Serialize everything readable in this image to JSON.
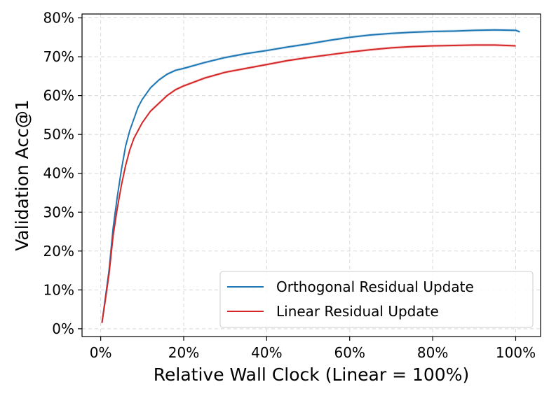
{
  "chart_data": {
    "type": "line",
    "title": "",
    "xlabel": "Relative Wall Clock (Linear = 100%)",
    "ylabel": "Validation Acc@1",
    "xlim": [
      -4.5,
      106
    ],
    "ylim": [
      -2,
      81
    ],
    "xticks": [
      0,
      20,
      40,
      60,
      80,
      100
    ],
    "xtick_labels": [
      "0%",
      "20%",
      "40%",
      "60%",
      "80%",
      "100%"
    ],
    "yticks": [
      0,
      10,
      20,
      30,
      40,
      50,
      60,
      70,
      80
    ],
    "ytick_labels": [
      "0%",
      "10%",
      "20%",
      "30%",
      "40%",
      "50%",
      "60%",
      "70%",
      "80%"
    ],
    "grid": true,
    "legend_position": "lower-right",
    "series": [
      {
        "name": "Orthogonal Residual Update",
        "color": "#1f77b4",
        "x": [
          0.3,
          1,
          2,
          3,
          4,
          5,
          6,
          7,
          8,
          9,
          10,
          12,
          14,
          16,
          18,
          20,
          25,
          30,
          35,
          40,
          45,
          50,
          55,
          60,
          65,
          70,
          75,
          80,
          85,
          90,
          95,
          100,
          101
        ],
        "y": [
          1.5,
          7,
          15,
          26,
          34,
          41,
          47,
          51,
          54,
          57,
          59,
          62,
          64,
          65.5,
          66.5,
          67,
          68.5,
          69.8,
          70.8,
          71.6,
          72.5,
          73.3,
          74.2,
          75,
          75.6,
          76,
          76.3,
          76.5,
          76.6,
          76.8,
          76.9,
          76.8,
          76.4
        ]
      },
      {
        "name": "Linear Residual Update",
        "color": "#d62728",
        "x": [
          0.3,
          1,
          2,
          3,
          4,
          5,
          6,
          7,
          8,
          9,
          10,
          12,
          14,
          16,
          18,
          20,
          25,
          30,
          35,
          40,
          45,
          50,
          55,
          60,
          65,
          70,
          75,
          80,
          85,
          90,
          95,
          100
        ],
        "y": [
          1.5,
          6.5,
          14,
          24,
          31,
          37,
          42,
          46,
          49,
          51,
          53,
          56,
          58,
          60,
          61.5,
          62.5,
          64.5,
          66,
          67,
          68,
          69,
          69.8,
          70.5,
          71.2,
          71.8,
          72.3,
          72.6,
          72.8,
          72.9,
          73,
          73,
          72.8
        ]
      }
    ]
  }
}
